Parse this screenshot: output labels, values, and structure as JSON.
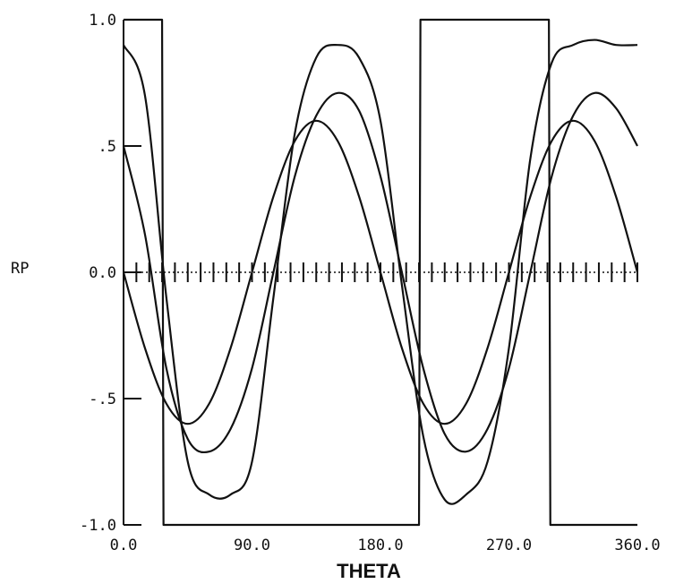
{
  "chart_data": {
    "type": "line",
    "title": "",
    "xlabel": "THETA",
    "ylabel": "RP",
    "xlim": [
      0,
      360
    ],
    "ylim": [
      -1,
      1
    ],
    "x_tick_labels": [
      {
        "value": 0,
        "label": "0.0"
      },
      {
        "value": 90,
        "label": "90.0"
      },
      {
        "value": 180,
        "label": "180.0"
      },
      {
        "value": 270,
        "label": "270.0"
      },
      {
        "value": 360,
        "label": "360.0"
      }
    ],
    "y_tick_labels": [
      {
        "value": 1,
        "label": "1.0"
      },
      {
        "value": 0.5,
        "label": ".5"
      },
      {
        "value": 0,
        "label": "0.0"
      },
      {
        "value": -0.5,
        "label": "-.5"
      },
      {
        "value": -1,
        "label": "-1.0"
      }
    ],
    "grid": false,
    "minor_tick_step_deg": 9,
    "series": [
      {
        "x": [
          0,
          27,
          28,
          207,
          208,
          298,
          299,
          360
        ],
        "y": [
          1,
          1,
          -1,
          -1,
          1,
          1,
          -1,
          -1
        ]
      },
      {
        "x": [
          0,
          15,
          30,
          45,
          60,
          75,
          90,
          105,
          120,
          135,
          150,
          165,
          180,
          195,
          210,
          225,
          240,
          255,
          270,
          285,
          300,
          315,
          330,
          345,
          360
        ],
        "y": [
          0.9,
          0.7,
          -0.1,
          -0.75,
          -0.88,
          -0.88,
          -0.75,
          -0.1,
          0.55,
          0.85,
          0.9,
          0.85,
          0.6,
          -0.05,
          -0.65,
          -0.9,
          -0.88,
          -0.75,
          -0.3,
          0.45,
          0.83,
          0.9,
          0.92,
          0.9,
          0.9
        ]
      },
      {
        "x": [
          0,
          15,
          30,
          45,
          60,
          75,
          90,
          105,
          120,
          135,
          150,
          165,
          180,
          195,
          210,
          225,
          240,
          255,
          270,
          285,
          300,
          315,
          330,
          345,
          360
        ],
        "y": [
          0.5,
          0.15,
          -0.38,
          -0.66,
          -0.71,
          -0.62,
          -0.38,
          0.0,
          0.38,
          0.62,
          0.71,
          0.64,
          0.38,
          0.0,
          -0.38,
          -0.64,
          -0.71,
          -0.62,
          -0.38,
          0.0,
          0.38,
          0.62,
          0.71,
          0.65,
          0.5
        ]
      },
      {
        "x": [
          0,
          15,
          30,
          45,
          60,
          75,
          90,
          105,
          120,
          135,
          150,
          165,
          180,
          195,
          210,
          225,
          240,
          255,
          270,
          285,
          300,
          315,
          330,
          345,
          360
        ],
        "y": [
          0.0,
          -0.3,
          -0.52,
          -0.6,
          -0.52,
          -0.3,
          0.0,
          0.3,
          0.52,
          0.6,
          0.52,
          0.3,
          0.0,
          -0.3,
          -0.52,
          -0.6,
          -0.52,
          -0.3,
          0.0,
          0.3,
          0.52,
          0.6,
          0.52,
          0.3,
          0.0
        ]
      }
    ]
  }
}
